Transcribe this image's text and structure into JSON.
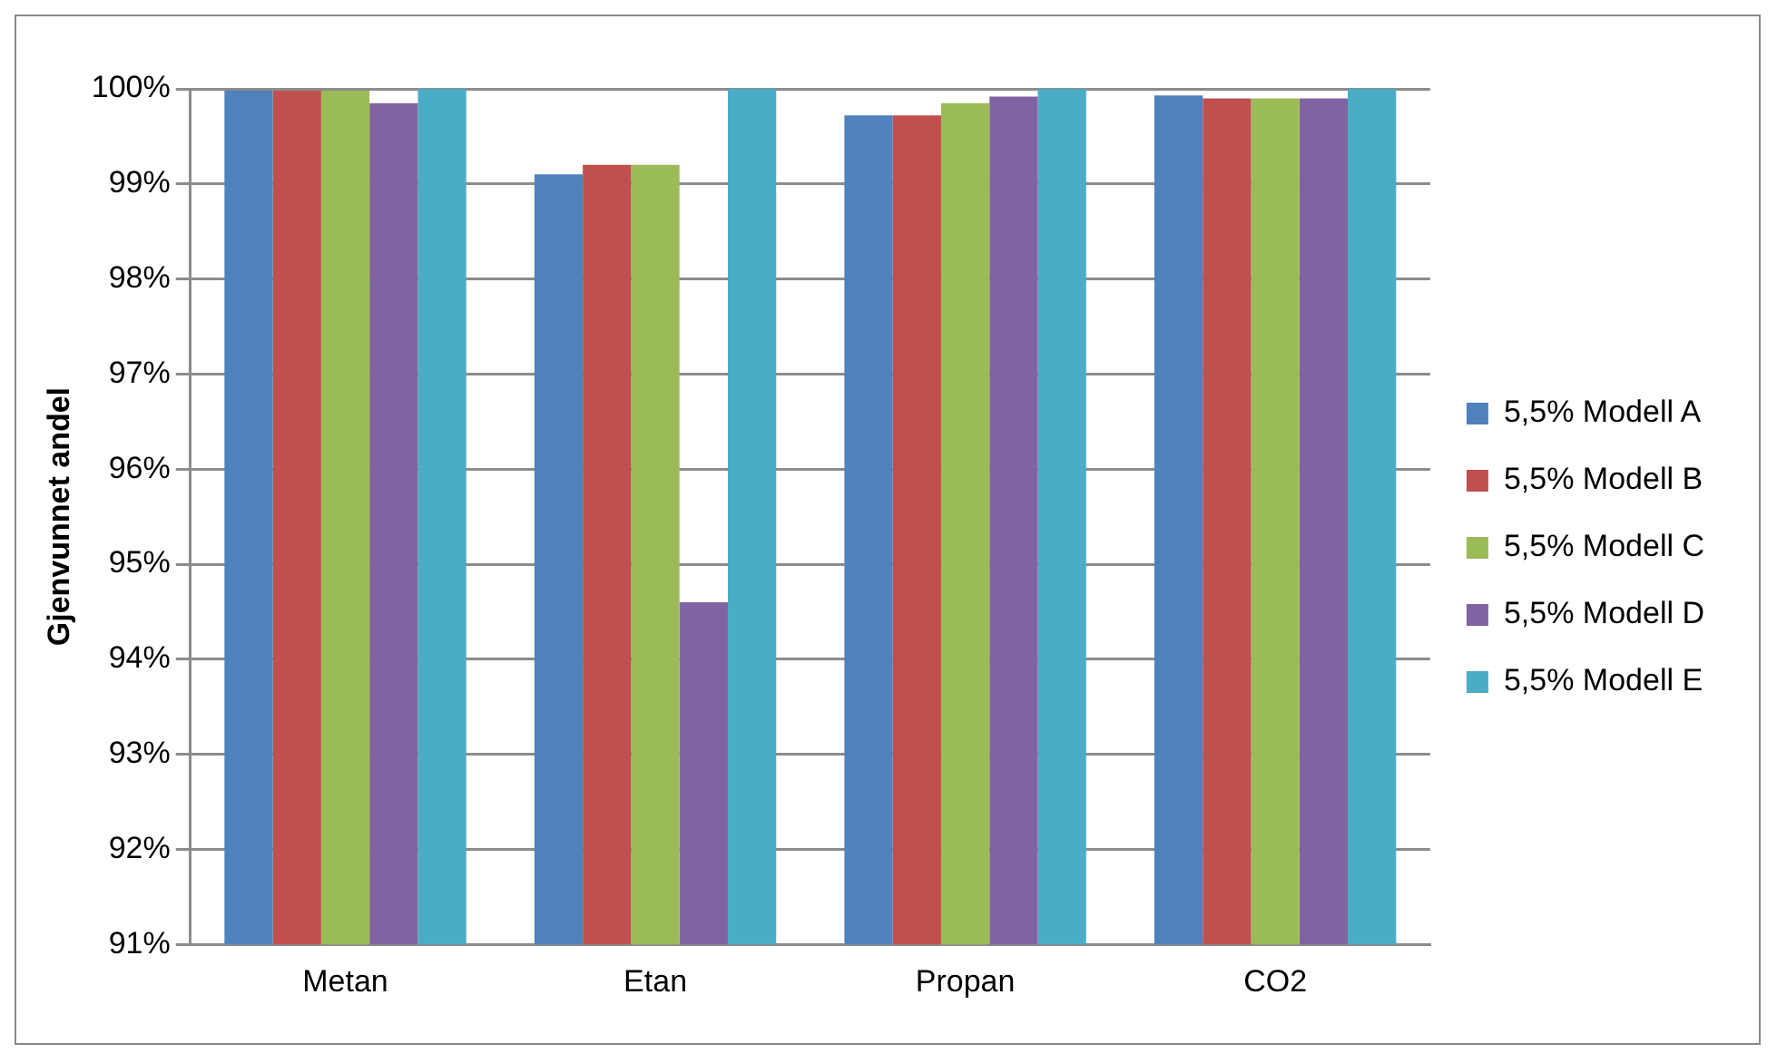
{
  "chart_data": {
    "type": "bar",
    "ylabel": "Gjenvunnet andel",
    "categories": [
      "Metan",
      "Etan",
      "Propan",
      "CO2"
    ],
    "series": [
      {
        "name": "5,5% Modell A",
        "color": "#4f81bd",
        "values": [
          99.98,
          99.1,
          99.72,
          99.93
        ]
      },
      {
        "name": "5,5% Modell B",
        "color": "#c0504d",
        "values": [
          99.98,
          99.2,
          99.72,
          99.9
        ]
      },
      {
        "name": "5,5% Modell C",
        "color": "#9bbb59",
        "values": [
          99.98,
          99.2,
          99.85,
          99.9
        ]
      },
      {
        "name": "5,5% Modell D",
        "color": "#8064a2",
        "values": [
          99.85,
          94.6,
          99.92,
          99.9
        ]
      },
      {
        "name": "5,5% Modell E",
        "color": "#4bacc6",
        "values": [
          100,
          100,
          100,
          100
        ]
      }
    ],
    "ylim": [
      91,
      100
    ],
    "yticks": [
      {
        "value": 91,
        "label": "91%"
      },
      {
        "value": 92,
        "label": "92%"
      },
      {
        "value": 93,
        "label": "93%"
      },
      {
        "value": 94,
        "label": "94%"
      },
      {
        "value": 95,
        "label": "95%"
      },
      {
        "value": 96,
        "label": "96%"
      },
      {
        "value": 97,
        "label": "97%"
      },
      {
        "value": 98,
        "label": "98%"
      },
      {
        "value": 99,
        "label": "99%"
      },
      {
        "value": 100,
        "label": "100%"
      }
    ],
    "grid": "y",
    "legend": "right"
  }
}
